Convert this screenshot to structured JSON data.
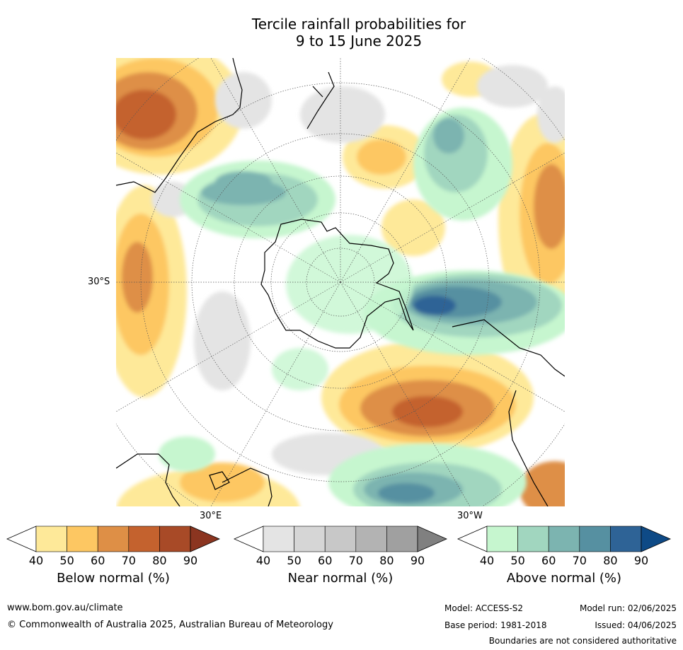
{
  "title": {
    "line1": "Tercile rainfall probabilities for",
    "line2": "9 to 15 June 2025"
  },
  "map": {
    "projection": "south polar stereographic",
    "lat_label": "30°S",
    "lon_label_east": "30°E",
    "lon_label_west": "30°W"
  },
  "colorbars": [
    {
      "label": "Below normal (%)",
      "ticks": [
        "40",
        "50",
        "60",
        "70",
        "80",
        "90"
      ],
      "colors": [
        "#ffffff",
        "#fee999",
        "#fdc762",
        "#de8f46",
        "#c4622e",
        "#a84a27",
        "#8b3520"
      ]
    },
    {
      "label": "Near normal (%)",
      "ticks": [
        "40",
        "50",
        "60",
        "70",
        "80",
        "90"
      ],
      "colors": [
        "#ffffff",
        "#e4e4e4",
        "#d6d6d6",
        "#c8c8c8",
        "#b3b3b3",
        "#a0a0a0",
        "#808080"
      ]
    },
    {
      "label": "Above normal (%)",
      "ticks": [
        "40",
        "50",
        "60",
        "70",
        "80",
        "90"
      ],
      "colors": [
        "#ffffff",
        "#c6f6cf",
        "#a1d6bf",
        "#7cb4b0",
        "#5690a1",
        "#2e6396",
        "#0e4a86"
      ]
    }
  ],
  "footer": {
    "website": "www.bom.gov.au/climate",
    "copyright": "© Commonwealth of Australia 2025, Australian Bureau of Meteorology",
    "model": "Model: ACCESS-S2",
    "model_run": "Model run: 02/06/2025",
    "base_period": "Base period: 1981-2018",
    "issued": "Issued: 04/06/2025",
    "disclaimer": "Boundaries are not considered authoritative"
  }
}
